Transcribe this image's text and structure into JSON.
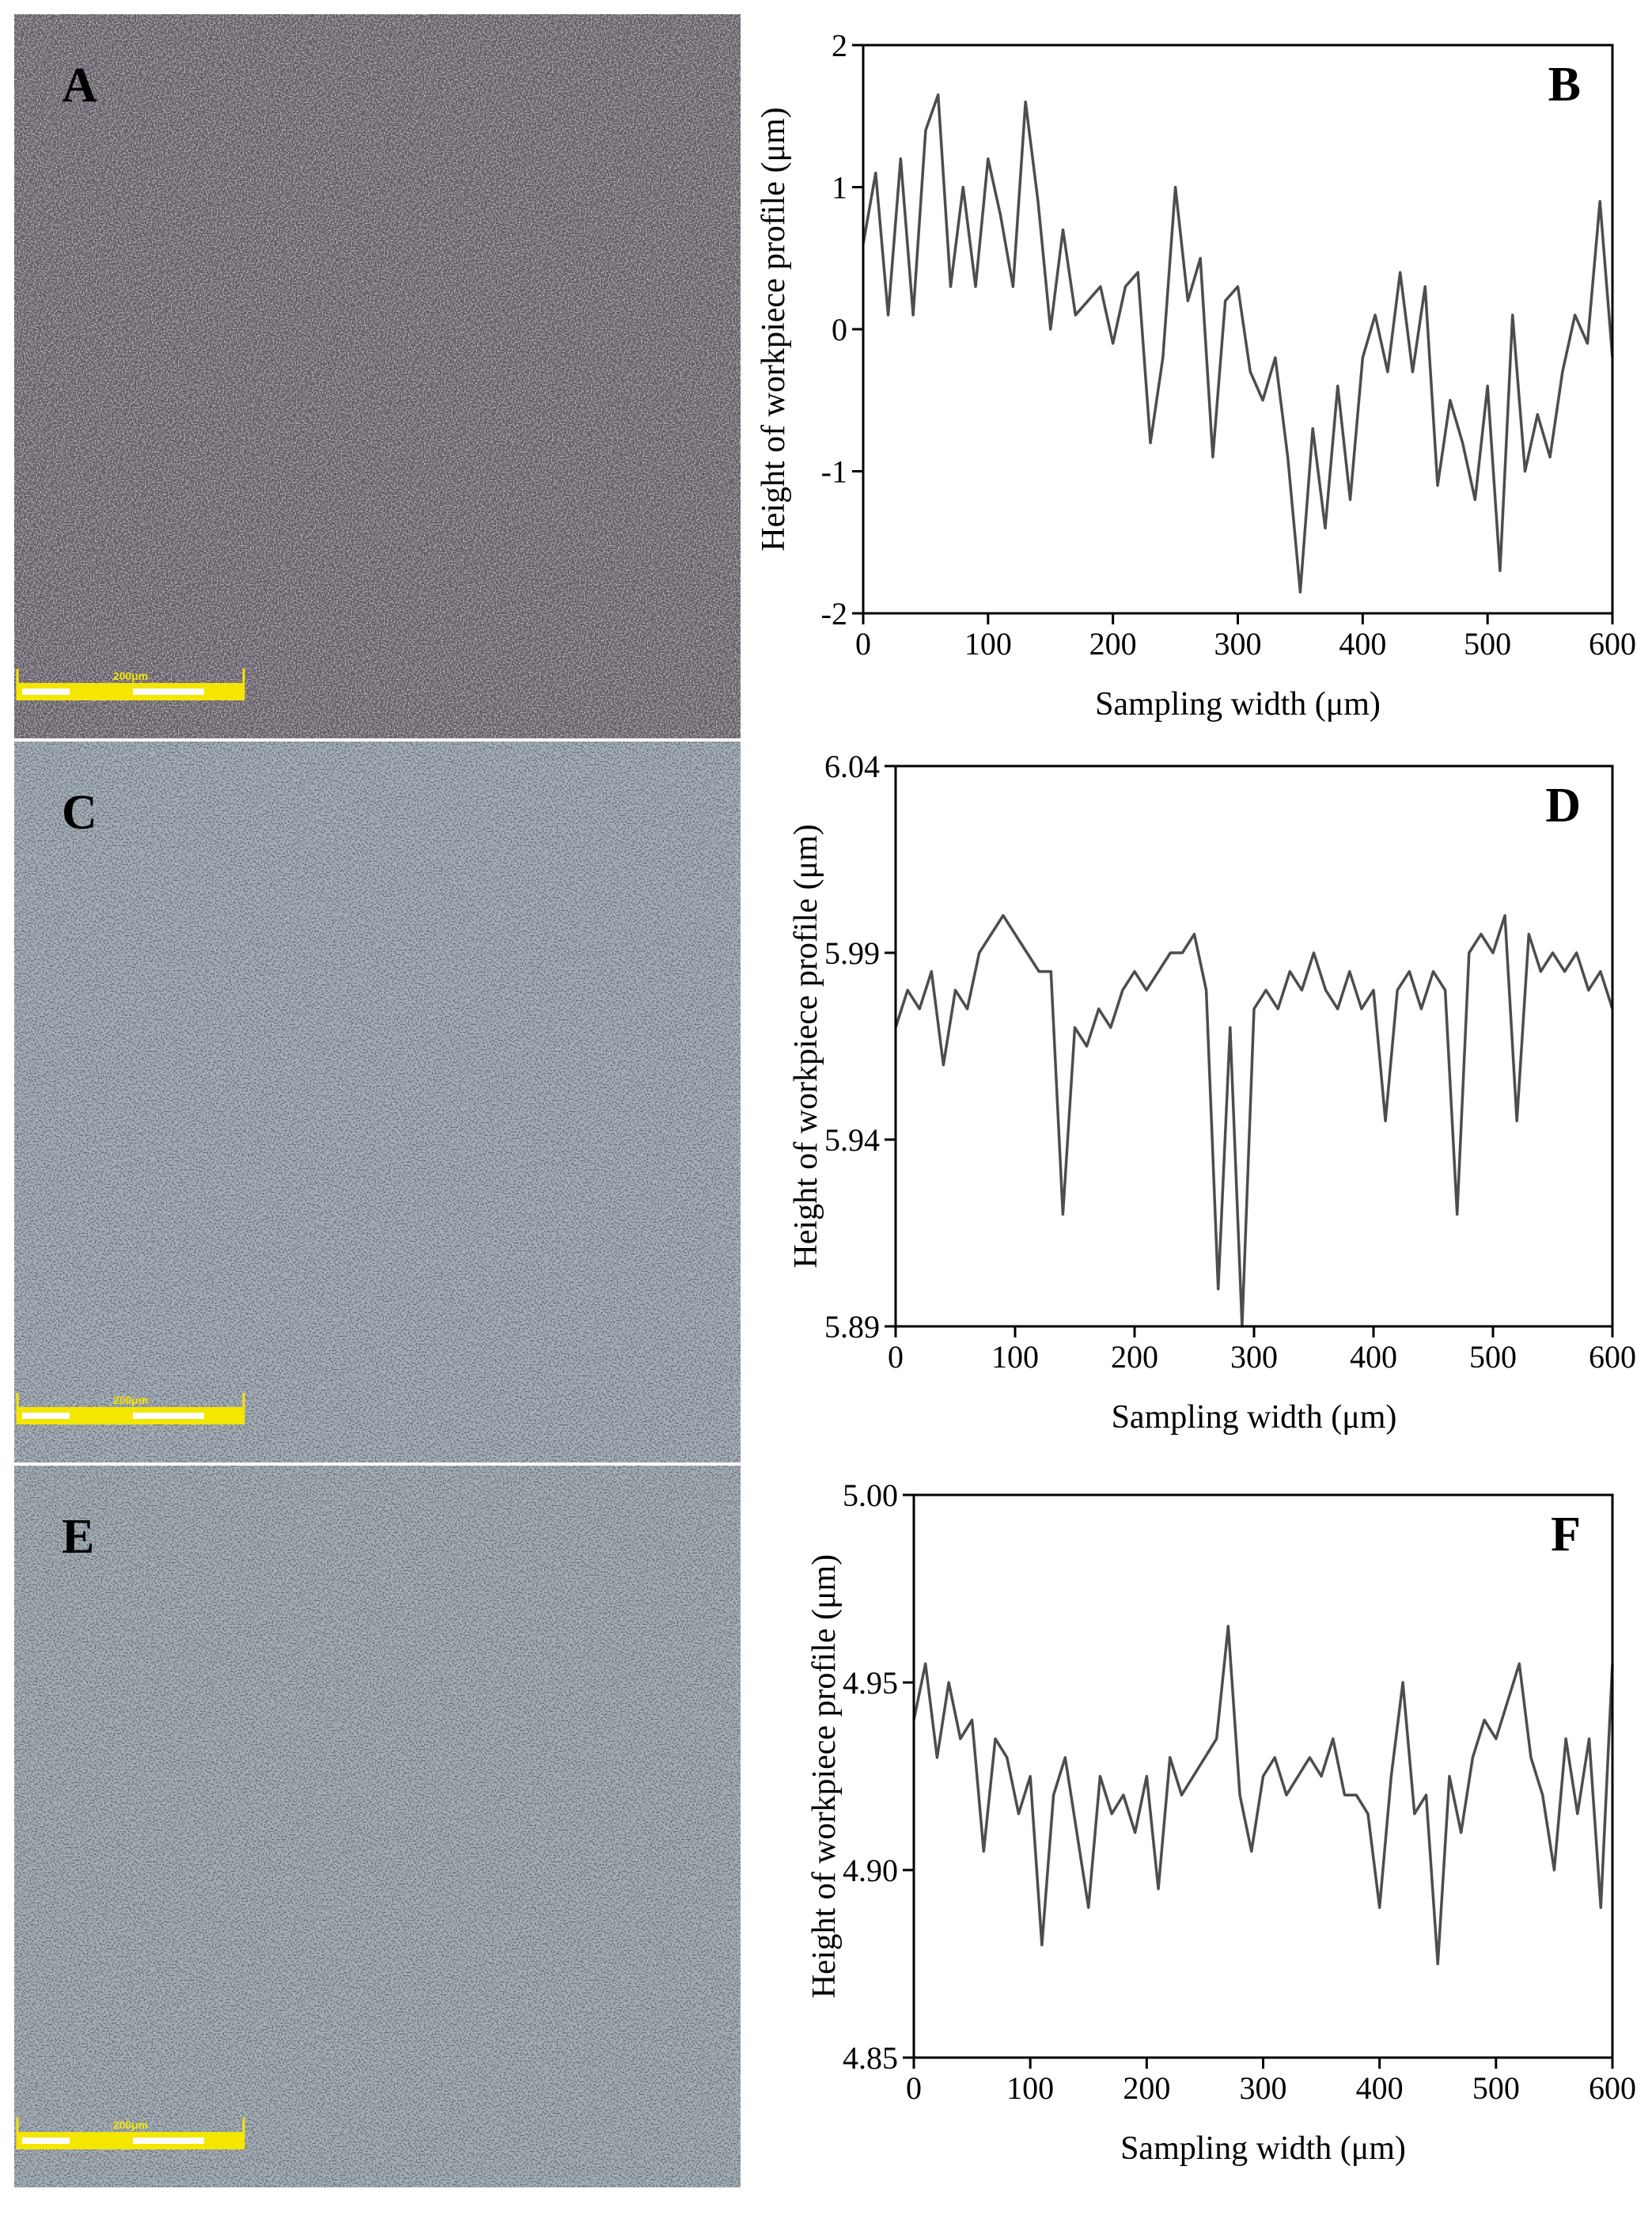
{
  "micrographs": [
    {
      "panel": "A",
      "scale_bar": "200μm"
    },
    {
      "panel": "C",
      "scale_bar": "200μm"
    },
    {
      "panel": "E",
      "scale_bar": "200μm"
    }
  ],
  "chart_data": [
    {
      "type": "line",
      "panel": "B",
      "x_label": "Sampling width (μm)",
      "y_label": "Height of workpiece profile (μm)",
      "color": "#4d4d4d",
      "xlim": [
        0,
        600
      ],
      "xticks": [
        0,
        100,
        200,
        300,
        400,
        500,
        600
      ],
      "ylim": [
        -2,
        2
      ],
      "yticks": [
        -2,
        -1,
        0,
        1,
        2
      ],
      "x": [
        0,
        10,
        20,
        30,
        40,
        50,
        60,
        70,
        80,
        90,
        100,
        110,
        120,
        130,
        140,
        150,
        160,
        170,
        180,
        190,
        200,
        210,
        220,
        230,
        240,
        250,
        260,
        270,
        280,
        290,
        300,
        310,
        320,
        330,
        340,
        350,
        360,
        370,
        380,
        390,
        400,
        410,
        420,
        430,
        440,
        450,
        460,
        470,
        480,
        490,
        500,
        510,
        520,
        530,
        540,
        550,
        560,
        570,
        580,
        590,
        600
      ],
      "values": [
        0.6,
        1.1,
        0.1,
        1.2,
        0.1,
        1.4,
        1.65,
        0.3,
        1.0,
        0.3,
        1.2,
        0.8,
        0.3,
        1.6,
        0.9,
        0.0,
        0.7,
        0.1,
        0.2,
        0.3,
        -0.1,
        0.3,
        0.4,
        -0.8,
        -0.2,
        1.0,
        0.2,
        0.5,
        -0.9,
        0.2,
        0.3,
        -0.3,
        -0.5,
        -0.2,
        -0.9,
        -1.85,
        -0.7,
        -1.4,
        -0.4,
        -1.2,
        -0.2,
        0.1,
        -0.3,
        0.4,
        -0.3,
        0.3,
        -1.1,
        -0.5,
        -0.8,
        -1.2,
        -0.4,
        -1.7,
        0.1,
        -1.0,
        -0.6,
        -0.9,
        -0.3,
        0.1,
        -0.1,
        0.9,
        -0.2
      ]
    },
    {
      "type": "line",
      "panel": "D",
      "x_label": "Sampling width (μm)",
      "y_label": "Height of workpiece profile (μm)",
      "color": "#4d4d4d",
      "xlim": [
        0,
        600
      ],
      "xticks": [
        0,
        100,
        200,
        300,
        400,
        500,
        600
      ],
      "ylim": [
        5.89,
        6.04
      ],
      "yticks": [
        5.89,
        5.94,
        5.99,
        6.04
      ],
      "x": [
        0,
        10,
        20,
        30,
        40,
        50,
        60,
        70,
        80,
        90,
        100,
        110,
        120,
        130,
        140,
        150,
        160,
        170,
        180,
        190,
        200,
        210,
        220,
        230,
        240,
        250,
        260,
        270,
        280,
        290,
        300,
        310,
        320,
        330,
        340,
        350,
        360,
        370,
        380,
        390,
        400,
        410,
        420,
        430,
        440,
        450,
        460,
        470,
        480,
        490,
        500,
        510,
        520,
        530,
        540,
        550,
        560,
        570,
        580,
        590,
        600
      ],
      "values": [
        5.97,
        5.98,
        5.975,
        5.985,
        5.96,
        5.98,
        5.975,
        5.99,
        5.995,
        6.0,
        5.995,
        5.99,
        5.985,
        5.985,
        5.92,
        5.97,
        5.965,
        5.975,
        5.97,
        5.98,
        5.985,
        5.98,
        5.985,
        5.99,
        5.99,
        5.995,
        5.98,
        5.9,
        5.97,
        5.89,
        5.975,
        5.98,
        5.975,
        5.985,
        5.98,
        5.99,
        5.98,
        5.975,
        5.985,
        5.975,
        5.98,
        5.945,
        5.98,
        5.985,
        5.975,
        5.985,
        5.98,
        5.92,
        5.99,
        5.995,
        5.99,
        6.0,
        5.945,
        5.995,
        5.985,
        5.99,
        5.985,
        5.99,
        5.98,
        5.985,
        5.975
      ]
    },
    {
      "type": "line",
      "panel": "F",
      "x_label": "Sampling width (μm)",
      "y_label": "Height of workpiece profile (μm)",
      "color": "#4d4d4d",
      "xlim": [
        0,
        600
      ],
      "xticks": [
        0,
        100,
        200,
        300,
        400,
        500,
        600
      ],
      "ylim": [
        4.85,
        5.0
      ],
      "yticks": [
        4.85,
        {
          "value": 4.9,
          "label": "4.90"
        },
        4.95,
        {
          "value": 5.0,
          "label": "5.00"
        }
      ],
      "x": [
        0,
        10,
        20,
        30,
        40,
        50,
        60,
        70,
        80,
        90,
        100,
        110,
        120,
        130,
        140,
        150,
        160,
        170,
        180,
        190,
        200,
        210,
        220,
        230,
        240,
        250,
        260,
        270,
        280,
        290,
        300,
        310,
        320,
        330,
        340,
        350,
        360,
        370,
        380,
        390,
        400,
        410,
        420,
        430,
        440,
        450,
        460,
        470,
        480,
        490,
        500,
        510,
        520,
        530,
        540,
        550,
        560,
        570,
        580,
        590,
        600
      ],
      "values": [
        4.94,
        4.955,
        4.93,
        4.95,
        4.935,
        4.94,
        4.905,
        4.935,
        4.93,
        4.915,
        4.925,
        4.88,
        4.92,
        4.93,
        4.91,
        4.89,
        4.925,
        4.915,
        4.92,
        4.91,
        4.925,
        4.895,
        4.93,
        4.92,
        4.925,
        4.93,
        4.935,
        4.965,
        4.92,
        4.905,
        4.925,
        4.93,
        4.92,
        4.925,
        4.93,
        4.925,
        4.935,
        4.92,
        4.92,
        4.915,
        4.89,
        4.925,
        4.95,
        4.915,
        4.92,
        4.875,
        4.925,
        4.91,
        4.93,
        4.94,
        4.935,
        4.945,
        4.955,
        4.93,
        4.92,
        4.9,
        4.935,
        4.915,
        4.935,
        4.89,
        4.955
      ]
    }
  ]
}
